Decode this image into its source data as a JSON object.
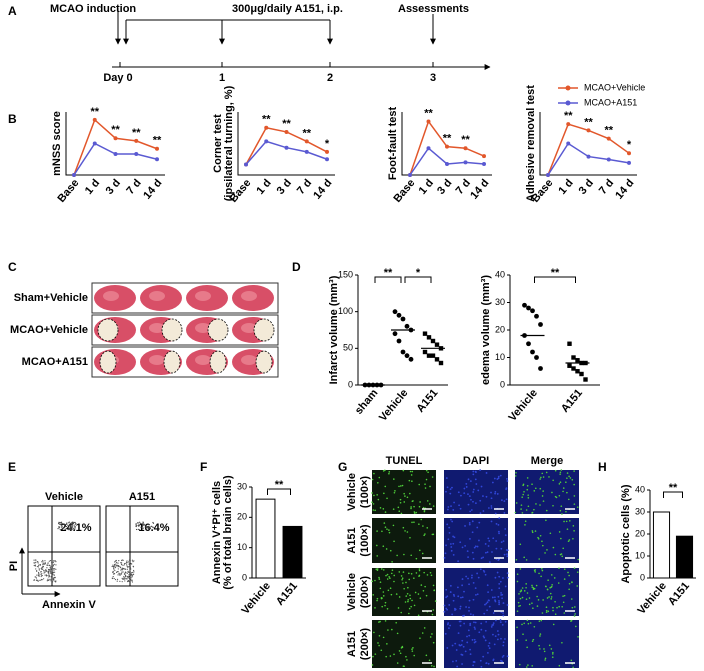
{
  "panel_labels": [
    "A",
    "B",
    "C",
    "D",
    "E",
    "F",
    "G",
    "H"
  ],
  "timeline": {
    "events": [
      "MCAO induction",
      "300μg/daily A151, i.p.",
      "Assessments"
    ],
    "days": [
      "Day 0",
      "1",
      "2",
      "3"
    ]
  },
  "brain_slices": {
    "rows": [
      "Sham+Vehicle",
      "MCAO+Vehicle",
      "MCAO+A151"
    ]
  },
  "flow_cytometry": {
    "groups": [
      "Vehicle",
      "A151"
    ],
    "percentages": [
      "24.1%",
      "16.4%"
    ],
    "y_axis": "PI",
    "x_axis": "Annexin V"
  },
  "microscopy": {
    "columns": [
      "TUNEL",
      "DAPI",
      "Merge"
    ],
    "rows": [
      [
        "Vehicle",
        "(100×)"
      ],
      [
        "A151",
        "(100×)"
      ],
      [
        "Vehicle",
        "(200×)"
      ],
      [
        "A151",
        "(200×)"
      ]
    ]
  },
  "chart_data": [
    {
      "type": "line",
      "ylabel": "mNSS score",
      "categories": [
        "Base",
        "1 d",
        "3 d",
        "7 d",
        "14 d"
      ],
      "ylim": [
        0,
        12
      ],
      "series": [
        {
          "name": "MCAO+Vehicle",
          "color": "#e2572b",
          "values": [
            0,
            10.5,
            7,
            6.5,
            5
          ]
        },
        {
          "name": "MCAO+A151",
          "color": "#5a5ad2",
          "values": [
            0,
            6,
            4,
            4,
            3
          ]
        }
      ],
      "annotations": [
        {
          "text": "**",
          "at": "1 d"
        },
        {
          "text": "**",
          "at": "3 d"
        },
        {
          "text": "**",
          "at": "7 d"
        },
        {
          "text": "**",
          "at": "14 d"
        }
      ]
    },
    {
      "type": "line",
      "ylabel": [
        "Corner test",
        "(ipsilateral turning, %)"
      ],
      "categories": [
        "Base",
        "1 d",
        "3 d",
        "7 d",
        "14 d"
      ],
      "ylim": [
        40,
        100
      ],
      "series": [
        {
          "color": "#e2572b",
          "values": [
            50,
            85,
            81,
            72,
            62
          ]
        },
        {
          "color": "#5a5ad2",
          "values": [
            50,
            72,
            66,
            62,
            55
          ]
        }
      ],
      "annotations": [
        {
          "text": "**",
          "at": "1 d"
        },
        {
          "text": "**",
          "at": "3 d"
        },
        {
          "text": "**",
          "at": "7 d"
        },
        {
          "text": "*",
          "at": "14 d"
        }
      ]
    },
    {
      "type": "line",
      "ylabel": "Foot-fault test",
      "categories": [
        "Base",
        "1 d",
        "3 d",
        "7 d",
        "14 d"
      ],
      "ylim": [
        0,
        40
      ],
      "series": [
        {
          "color": "#e2572b",
          "values": [
            0,
            34,
            18,
            17,
            12
          ]
        },
        {
          "color": "#5a5ad2",
          "values": [
            0,
            17,
            7,
            8,
            7
          ]
        }
      ],
      "annotations": [
        {
          "text": "**",
          "at": "1 d"
        },
        {
          "text": "**",
          "at": "3 d"
        },
        {
          "text": "**",
          "at": "7 d"
        }
      ]
    },
    {
      "type": "line",
      "ylabel": "Adhesive removal test",
      "categories": [
        "Base",
        "1 d",
        "3 d",
        "7 d",
        "14 d"
      ],
      "ylim": [
        0,
        130
      ],
      "series": [
        {
          "color": "#e2572b",
          "values": [
            0,
            105,
            92,
            75,
            45
          ]
        },
        {
          "color": "#5a5ad2",
          "values": [
            0,
            65,
            38,
            32,
            25
          ]
        }
      ],
      "annotations": [
        {
          "text": "**",
          "at": "1 d"
        },
        {
          "text": "**",
          "at": "3 d"
        },
        {
          "text": "**",
          "at": "7 d"
        },
        {
          "text": "*",
          "at": "14 d"
        }
      ]
    },
    {
      "type": "dot",
      "ylabel": "Infarct volume (mm³)",
      "categories": [
        "sham",
        "Vehicle",
        "A151"
      ],
      "ylim": [
        0,
        150
      ],
      "yticks": [
        0,
        50,
        100,
        150
      ],
      "markers": [
        "circle",
        "circle",
        "square"
      ],
      "points": [
        [
          0,
          0,
          0,
          0,
          0
        ],
        [
          100,
          95,
          90,
          80,
          75,
          70,
          60,
          45,
          40,
          35
        ],
        [
          70,
          65,
          60,
          55,
          50,
          45,
          40,
          40,
          35,
          30
        ]
      ],
      "means": [
        0,
        75,
        50
      ],
      "annotations": [
        {
          "text": "**",
          "between": [
            "sham",
            "Vehicle"
          ]
        },
        {
          "text": "*",
          "between": [
            "Vehicle",
            "A151"
          ]
        }
      ]
    },
    {
      "type": "dot",
      "ylabel": "edema volume (mm³)",
      "categories": [
        "Vehicle",
        "A151"
      ],
      "ylim": [
        0,
        40
      ],
      "yticks": [
        0,
        10,
        20,
        30,
        40
      ],
      "markers": [
        "circle",
        "square"
      ],
      "points": [
        [
          29,
          28,
          27,
          25,
          22,
          18,
          15,
          12,
          10,
          6
        ],
        [
          15,
          10,
          9,
          8,
          8,
          7,
          6,
          5,
          4,
          2
        ]
      ],
      "means": [
        18,
        8
      ],
      "annotations": [
        {
          "text": "**",
          "between": [
            "Vehicle",
            "A151"
          ]
        }
      ]
    },
    {
      "type": "bar",
      "ylabel": [
        "Annexin V⁺PI⁺ cells",
        "(% of total brain cells)"
      ],
      "categories": [
        "Vehicle",
        "A151"
      ],
      "values": [
        26,
        17
      ],
      "colors": [
        "#ffffff",
        "#000000"
      ],
      "ylim": [
        0,
        30
      ],
      "yticks": [
        0,
        10,
        20,
        30
      ],
      "annotations": [
        {
          "text": "**",
          "between": [
            "Vehicle",
            "A151"
          ]
        }
      ]
    },
    {
      "type": "bar",
      "ylabel": "Apoptotic cells (%)",
      "categories": [
        "Vehicle",
        "A151"
      ],
      "values": [
        30,
        19
      ],
      "colors": [
        "#ffffff",
        "#000000"
      ],
      "ylim": [
        0,
        40
      ],
      "yticks": [
        0,
        10,
        20,
        30,
        40
      ],
      "annotations": [
        {
          "text": "**",
          "between": [
            "Vehicle",
            "A151"
          ]
        }
      ]
    }
  ]
}
